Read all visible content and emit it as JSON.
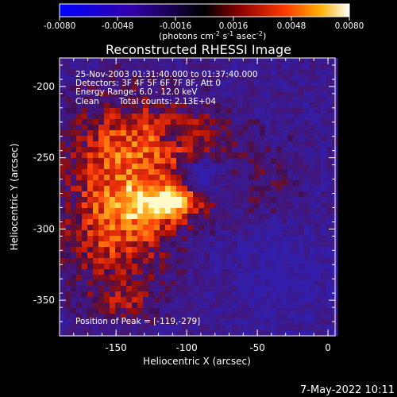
{
  "title": "Reconstructed RHESSI Image",
  "colorbar": {
    "ticks": [
      "-0.0080",
      "-0.0048",
      "-0.0016",
      "0.0016",
      "0.0048",
      "0.0080"
    ],
    "unit_main": "(photons cm",
    "unit_sup1": "-2",
    "unit_mid": " s",
    "unit_sup2": "-1",
    "unit_end": " asec",
    "unit_sup3": "-2",
    "unit_close": ")",
    "colors": [
      "#0000ff",
      "#4400cc",
      "#000000",
      "#7a0000",
      "#ff3a00",
      "#ffb000",
      "#ffffff"
    ]
  },
  "info": {
    "line1": "25-Nov-2003 01:31:40.000 to 01:37:40.000",
    "line2": "Detectors: 3F 4F 5F 6F 7F 8F, Att 0",
    "line3": "Energy Range: 6.0 - 12.0 keV",
    "line4_a": "Clean",
    "line4_b": "Total counts: 2.13E+04"
  },
  "peak_label": "Position of Peak = [-119,-279]",
  "axes": {
    "xlabel": "Heliocentric X (arcsec)",
    "ylabel": "Heliocentric Y (arcsec)",
    "xticks": [
      "-150",
      "-100",
      "-50",
      "0"
    ],
    "yticks": [
      "-200",
      "-250",
      "-300",
      "-350"
    ],
    "xlim": [
      -190,
      5
    ],
    "ylim": [
      -375,
      -180
    ]
  },
  "footer_date": "7-May-2022 10:11"
}
